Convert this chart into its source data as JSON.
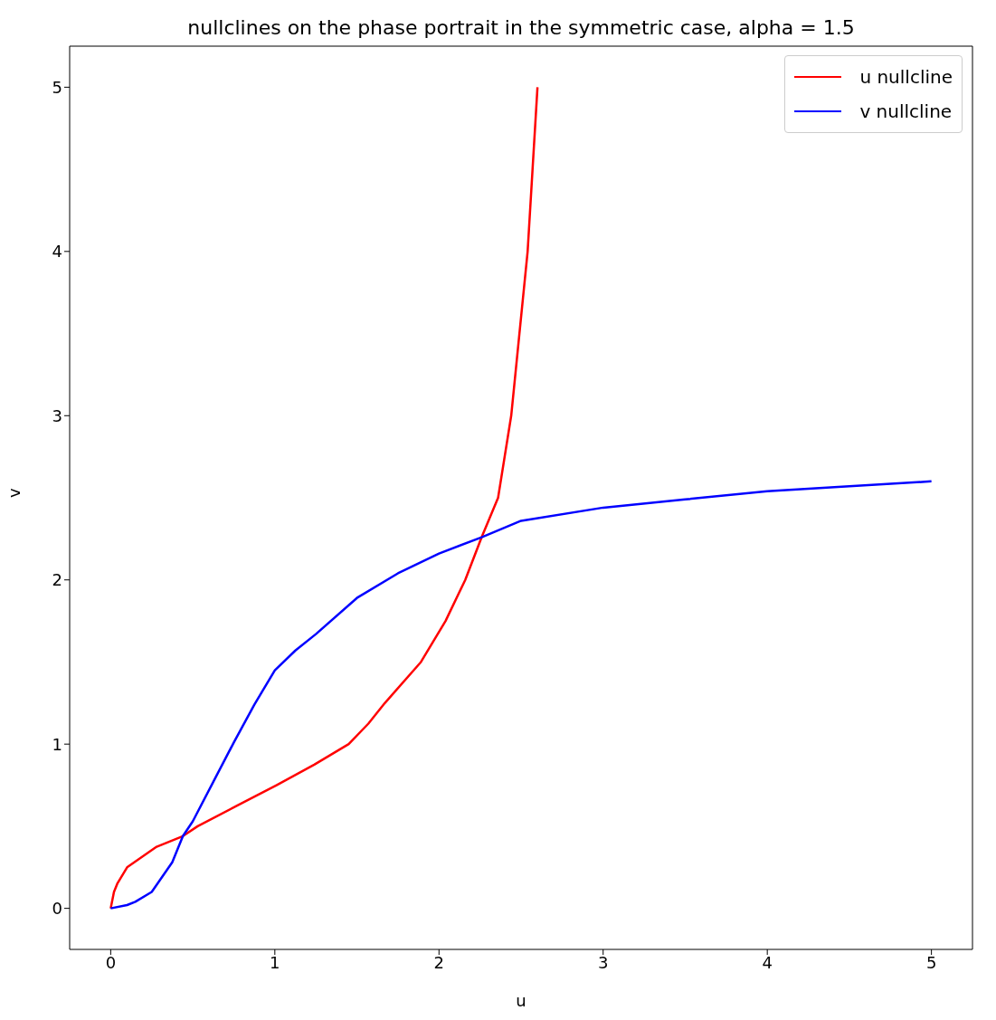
{
  "chart_data": {
    "type": "line",
    "title": "nullclines on the phase portrait in the symmetric case, alpha = 1.5",
    "xlabel": "u",
    "ylabel": "v",
    "xlim": [
      -0.25,
      5.25
    ],
    "ylim": [
      -0.25,
      5.25
    ],
    "xticks": [
      0,
      1,
      2,
      3,
      4,
      5
    ],
    "yticks": [
      0,
      1,
      2,
      3,
      4,
      5
    ],
    "grid": false,
    "legend": "top right",
    "marker": "none",
    "line_style": "solid",
    "series": [
      {
        "name": "u nullcline",
        "color": "#ff0000",
        "x": [
          0,
          0.02,
          0.04,
          0.1,
          0.28,
          0.44,
          0.53,
          0.77,
          1.01,
          1.24,
          1.45,
          1.57,
          1.67,
          1.89,
          2.04,
          2.16,
          2.26,
          2.36,
          2.44,
          2.49,
          2.54,
          2.57,
          2.6
        ],
        "values": [
          0,
          0.1,
          0.15,
          0.25,
          0.375,
          0.44,
          0.5,
          0.625,
          0.75,
          0.875,
          1,
          1.125,
          1.25,
          1.5,
          1.75,
          2,
          2.26,
          2.5,
          3,
          3.5,
          4,
          4.5,
          5
        ]
      },
      {
        "name": "v nullcline",
        "color": "#0000ff",
        "x": [
          0,
          0.1,
          0.15,
          0.25,
          0.375,
          0.44,
          0.5,
          0.625,
          0.75,
          0.875,
          1,
          1.125,
          1.25,
          1.5,
          1.75,
          2,
          2.26,
          2.5,
          3,
          3.5,
          4,
          4.5,
          5
        ],
        "values": [
          0,
          0.02,
          0.04,
          0.1,
          0.28,
          0.44,
          0.53,
          0.77,
          1.01,
          1.24,
          1.45,
          1.57,
          1.67,
          1.89,
          2.04,
          2.16,
          2.26,
          2.36,
          2.44,
          2.49,
          2.54,
          2.57,
          2.6
        ]
      }
    ]
  }
}
